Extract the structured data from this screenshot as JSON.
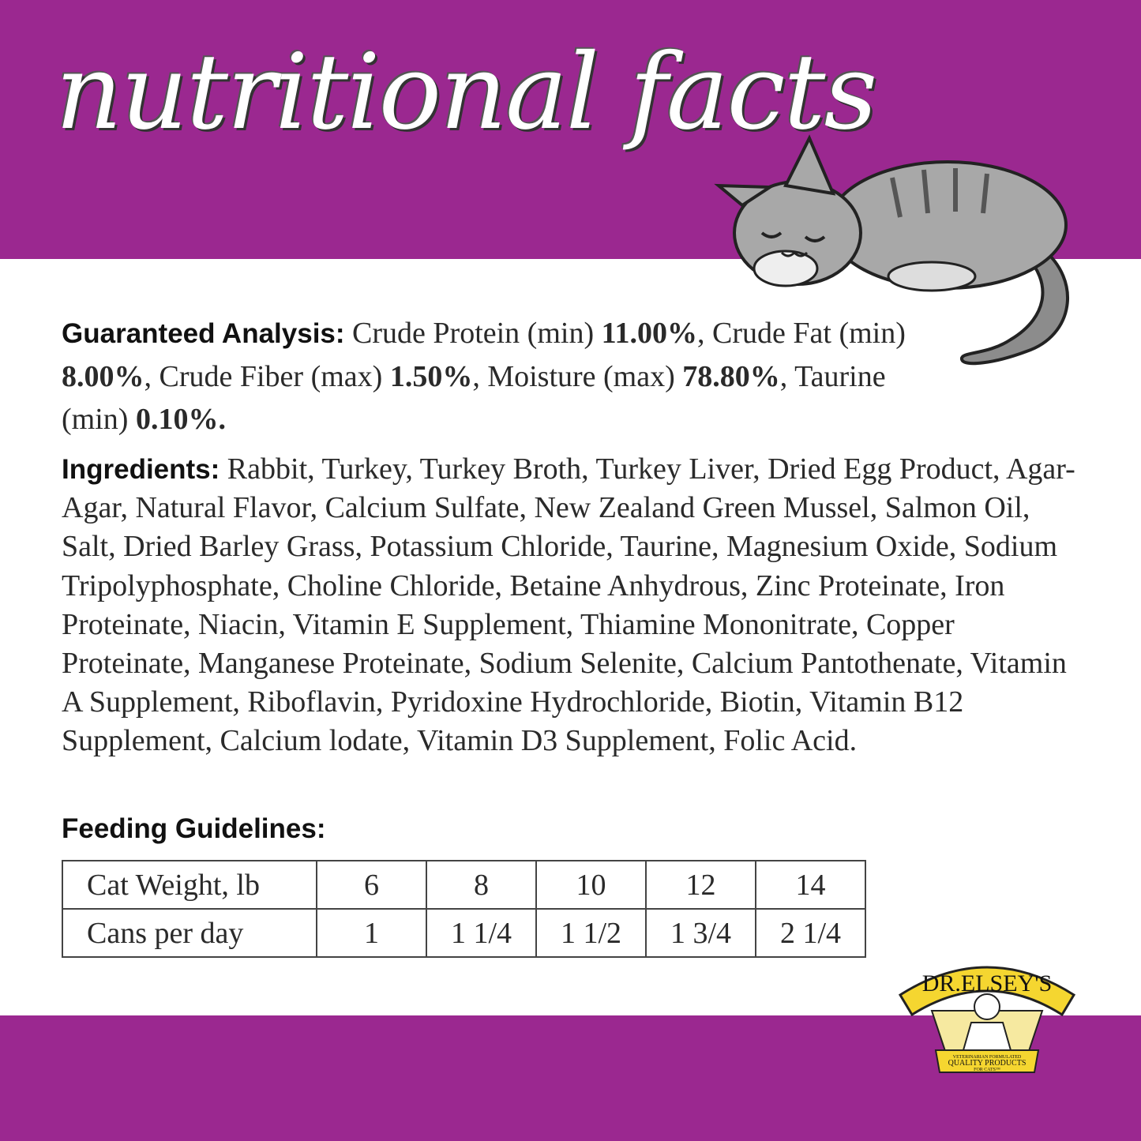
{
  "header": {
    "title": "nutritional facts"
  },
  "analysis": {
    "heading": "Guaranteed Analysis:",
    "segments": [
      {
        "text": " Crude Protein (min) ",
        "bold": false
      },
      {
        "text": "11.00%",
        "bold": true
      },
      {
        "text": ", Crude Fat (min) ",
        "bold": false
      },
      {
        "text": "8.00%",
        "bold": true
      },
      {
        "text": ", Crude Fiber (max) ",
        "bold": false
      },
      {
        "text": "1.50%",
        "bold": true
      },
      {
        "text": ", Moisture (max) ",
        "bold": false
      },
      {
        "text": "78.80%",
        "bold": true
      },
      {
        "text": ", Taurine (min) ",
        "bold": false
      },
      {
        "text": "0.10%.",
        "bold": true
      }
    ]
  },
  "ingredients": {
    "heading": "Ingredients:",
    "text": " Rabbit, Turkey, Turkey Broth, Turkey Liver, Dried Egg Product, Agar-Agar, Natural Flavor, Calcium Sulfate, New Zealand Green Mussel, Salmon Oil, Salt, Dried Barley Grass, Potassium Chloride, Taurine, Magnesium Oxide, Sodium Tripolyphosphate, Choline Chloride, Betaine Anhydrous, Zinc Proteinate, Iron Proteinate, Niacin, Vitamin E Supplement, Thiamine Mononitrate, Copper Proteinate, Manganese Proteinate, Sodium Selenite, Calcium Pantothenate, Vitamin A Supplement, Riboflavin, Pyridoxine Hydrochloride, Biotin, Vitamin B12 Supplement, Calcium lodate, Vitamin D3 Supplement, Folic Acid."
  },
  "feeding": {
    "heading": "Feeding Guidelines:",
    "rows": [
      {
        "label": "Cat Weight, lb",
        "values": [
          "6",
          "8",
          "10",
          "12",
          "14"
        ]
      },
      {
        "label": "Cans per day",
        "values": [
          "1",
          "1 1/4",
          "1 1/2",
          "1 3/4",
          "2 1/4"
        ]
      }
    ]
  },
  "logo": {
    "brand": "DR.ELSEY'S",
    "tagline_1": "VETERINARIAN FORMULATED",
    "tagline_2": "QUALITY PRODUCTS",
    "tagline_3": "FOR CATS™"
  },
  "colors": {
    "brand_purple": "#9b2890",
    "logo_yellow": "#f5d630"
  },
  "icons": {
    "illustration": "sleeping-tabby-cat"
  }
}
